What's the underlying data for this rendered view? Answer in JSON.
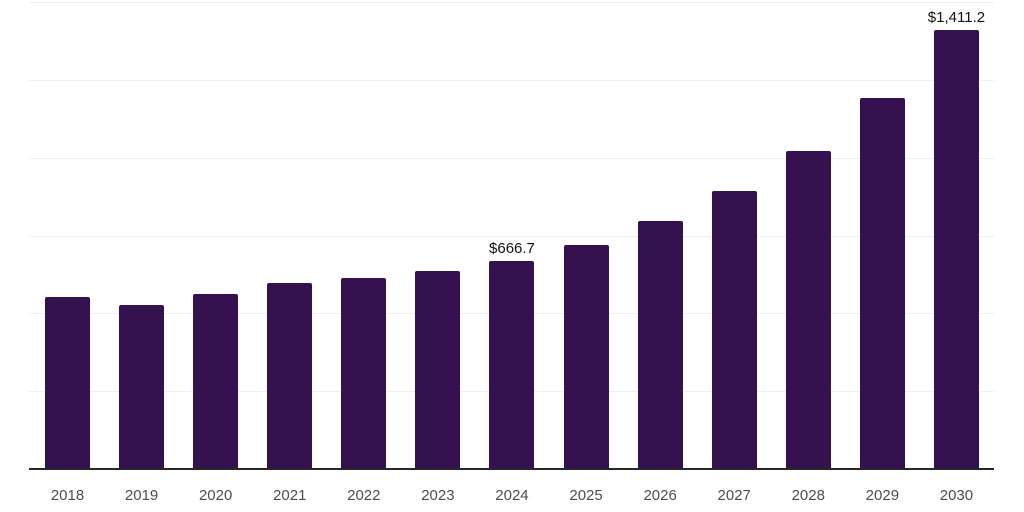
{
  "chart_data": {
    "type": "bar",
    "title": "",
    "xlabel": "",
    "ylabel": "",
    "categories": [
      "2018",
      "2019",
      "2020",
      "2021",
      "2022",
      "2023",
      "2024",
      "2025",
      "2026",
      "2027",
      "2028",
      "2029",
      "2030"
    ],
    "values": [
      552,
      526,
      561,
      597,
      613,
      635,
      666.7,
      719,
      796,
      892,
      1020,
      1193,
      1411.2
    ],
    "data_labels": {
      "2024": "$666.7",
      "2030": "$1,411.2"
    },
    "ylim": [
      0,
      1500
    ],
    "gridline_step": 250,
    "grid": true,
    "legend_position": "none",
    "bar_color": "#361150",
    "gridline_color": "#efefef",
    "axis_line_color": "#262626",
    "tick_label_color": "#4d4d4d",
    "data_label_color": "#111111"
  }
}
